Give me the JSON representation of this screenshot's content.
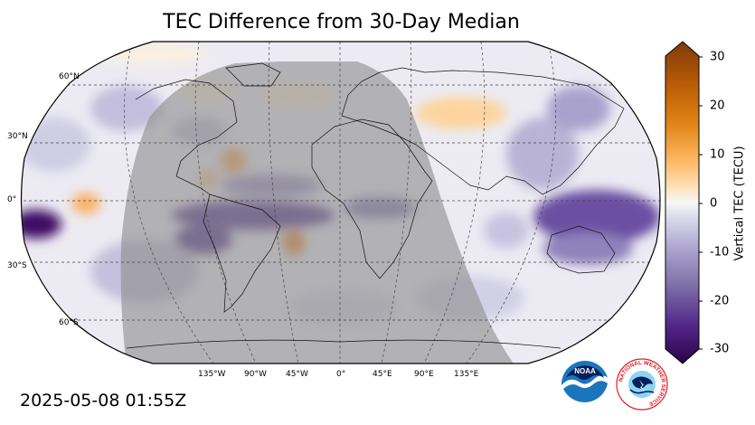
{
  "title": "TEC Difference from 30-Day Median",
  "timestamp": "2025-05-08 01:55Z",
  "map": {
    "projection": "robinson",
    "night_shading": true,
    "lat_labels": [
      "60°N",
      "30°N",
      "0°",
      "30°S",
      "60°S"
    ],
    "lon_labels": [
      "135°W",
      "90°W",
      "45°W",
      "0°",
      "45°E",
      "90°E",
      "135°E"
    ]
  },
  "colorbar": {
    "label": "Vertical TEC (TECU)",
    "ticks": [
      "30",
      "20",
      "10",
      "0",
      "-10",
      "-20",
      "-30"
    ],
    "range": [
      -30,
      30
    ],
    "colormap": "PuOr_r",
    "negative_color": "#2d004b",
    "positive_color": "#7f3b08"
  },
  "logos": {
    "noaa": "NOAA",
    "nws_ring_text": "NATIONAL WEATHER SERVICE"
  }
}
